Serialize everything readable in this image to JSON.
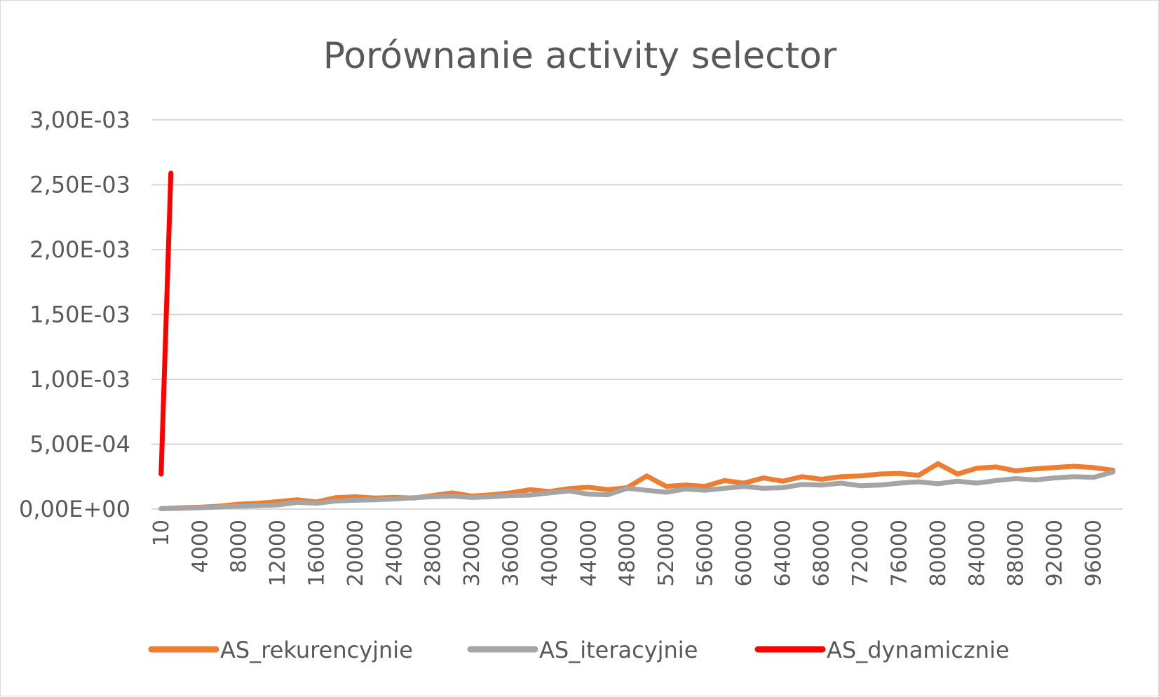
{
  "chart_data": {
    "type": "line",
    "title": "Porównanie activity selector",
    "xlabel": "",
    "ylabel": "",
    "ylim": [
      0,
      0.003
    ],
    "yticks": [
      "0,00E+00",
      "5,00E-04",
      "1,00E-03",
      "1,50E-03",
      "2,00E-03",
      "2,50E-03",
      "3,00E-03"
    ],
    "ytick_values": [
      0,
      0.0005,
      0.001,
      0.0015,
      0.002,
      0.0025,
      0.003
    ],
    "xticks": [
      "10",
      "4000",
      "8000",
      "12000",
      "16000",
      "20000",
      "24000",
      "28000",
      "32000",
      "36000",
      "40000",
      "44000",
      "48000",
      "52000",
      "56000",
      "60000",
      "64000",
      "68000",
      "72000",
      "76000",
      "80000",
      "84000",
      "88000",
      "92000",
      "96000"
    ],
    "xtick_indices": [
      0,
      2,
      4,
      6,
      8,
      10,
      12,
      14,
      16,
      18,
      20,
      22,
      24,
      26,
      28,
      30,
      32,
      34,
      36,
      38,
      40,
      42,
      44,
      46,
      48
    ],
    "n_points": 50,
    "grid": true,
    "legend_position": "bottom",
    "series": [
      {
        "name": "AS_rekurencyjnie",
        "color": "#ED7D31",
        "values": [
          3e-06,
          1e-05,
          1.4e-05,
          2.2e-05,
          3.8e-05,
          4.5e-05,
          5.8e-05,
          7.2e-05,
          5.5e-05,
          8.8e-05,
          9.5e-05,
          8.5e-05,
          9e-05,
          8.5e-05,
          0.000105,
          0.000125,
          0.0001,
          0.00011,
          0.000125,
          0.00015,
          0.000135,
          0.000158,
          0.000168,
          0.00015,
          0.000165,
          0.000255,
          0.000175,
          0.000185,
          0.000175,
          0.00022,
          0.0002,
          0.00024,
          0.000215,
          0.00025,
          0.00023,
          0.00025,
          0.000255,
          0.00027,
          0.000275,
          0.00026,
          0.00035,
          0.00027,
          0.000315,
          0.000325,
          0.000295,
          0.00031,
          0.00032,
          0.00033,
          0.00032,
          0.0003
        ],
        "x_positions": [
          0,
          1,
          2,
          3,
          4,
          5,
          6,
          7,
          8,
          9,
          10,
          11,
          12,
          13,
          14,
          15,
          16,
          17,
          18,
          19,
          20,
          21,
          22,
          23,
          24,
          25,
          26,
          27,
          28,
          29,
          30,
          31,
          32,
          33,
          34,
          35,
          36,
          37,
          38,
          39,
          40,
          41,
          42,
          43,
          44,
          45,
          46,
          47,
          48,
          49
        ]
      },
      {
        "name": "AS_iteracyjnie",
        "color": "#A5A5A5",
        "values": [
          3e-06,
          6e-06,
          1e-05,
          1.7e-05,
          2.2e-05,
          2.7e-05,
          3.2e-05,
          5.2e-05,
          4.5e-05,
          6.2e-05,
          6.8e-05,
          7.2e-05,
          7.8e-05,
          8.8e-05,
          9.5e-05,
          0.0001,
          9e-05,
          9.5e-05,
          0.000105,
          0.000108,
          0.000125,
          0.00014,
          0.000115,
          0.00011,
          0.00016,
          0.000145,
          0.00013,
          0.000155,
          0.000145,
          0.00016,
          0.000175,
          0.00016,
          0.000165,
          0.00019,
          0.000185,
          0.0002,
          0.00018,
          0.000185,
          0.0002,
          0.00021,
          0.000195,
          0.000215,
          0.0002,
          0.00022,
          0.000235,
          0.000225,
          0.00024,
          0.00025,
          0.000245,
          0.000285
        ],
        "x_positions": [
          0,
          1,
          2,
          3,
          4,
          5,
          6,
          7,
          8,
          9,
          10,
          11,
          12,
          13,
          14,
          15,
          16,
          17,
          18,
          19,
          20,
          21,
          22,
          23,
          24,
          25,
          26,
          27,
          28,
          29,
          30,
          31,
          32,
          33,
          34,
          35,
          36,
          37,
          38,
          39,
          40,
          41,
          42,
          43,
          44,
          45,
          46,
          47,
          48,
          49
        ]
      },
      {
        "name": "AS_dynamicznie",
        "color": "#FF0000",
        "values": [
          0.00027,
          0.00259
        ],
        "x_positions": [
          0,
          0.5
        ]
      }
    ]
  }
}
